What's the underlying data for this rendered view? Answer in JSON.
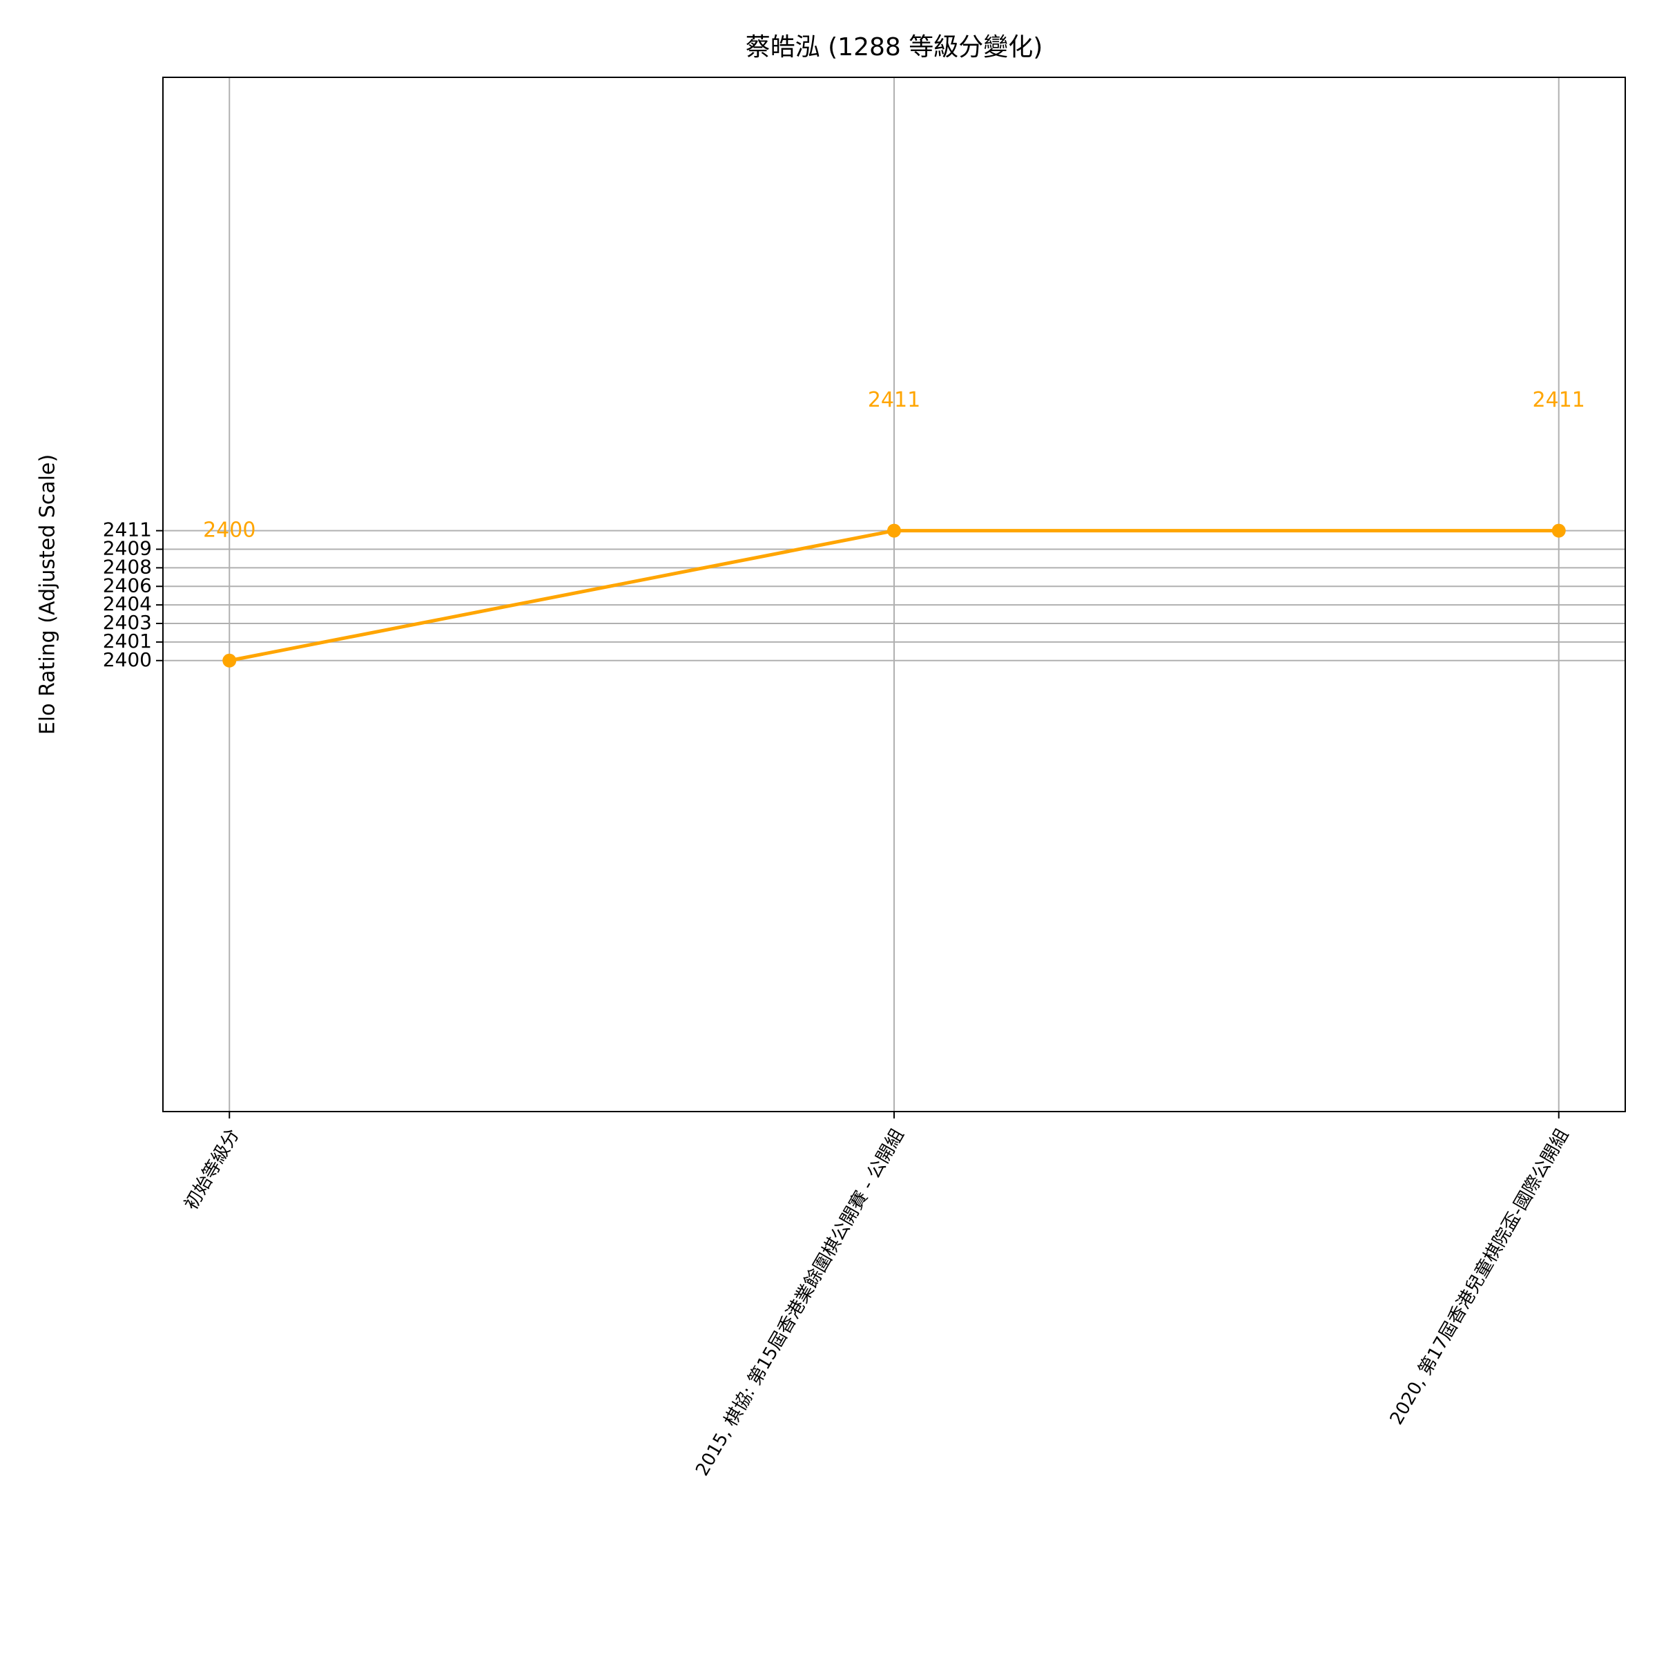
{
  "chart_data": {
    "type": "line",
    "title": "蔡皓泓 (1288 等級分變化)",
    "y_label": "Elo Rating (Adjusted Scale)",
    "categories": [
      "初始等級分",
      "2015, 棋協: 第15屆香港業餘圍棋公開賽 - 公開組",
      "2020, 第17屆香港兒童棋院盃-國際公開組"
    ],
    "series": [
      {
        "name": "蔡皓泓",
        "color": "#ffa500",
        "values": [
          2400,
          2411,
          2411
        ]
      }
    ],
    "ylim": [
      2361.8,
      2449.4
    ],
    "yticks": [
      {
        "value": 2400,
        "label": "2400"
      },
      {
        "value": 2401.571,
        "label": "2401"
      },
      {
        "value": 2403.143,
        "label": "2403"
      },
      {
        "value": 2404.714,
        "label": "2404"
      },
      {
        "value": 2406.286,
        "label": "2406"
      },
      {
        "value": 2407.857,
        "label": "2408"
      },
      {
        "value": 2409.429,
        "label": "2409"
      },
      {
        "value": 2411,
        "label": "2411"
      }
    ],
    "grid": true
  }
}
